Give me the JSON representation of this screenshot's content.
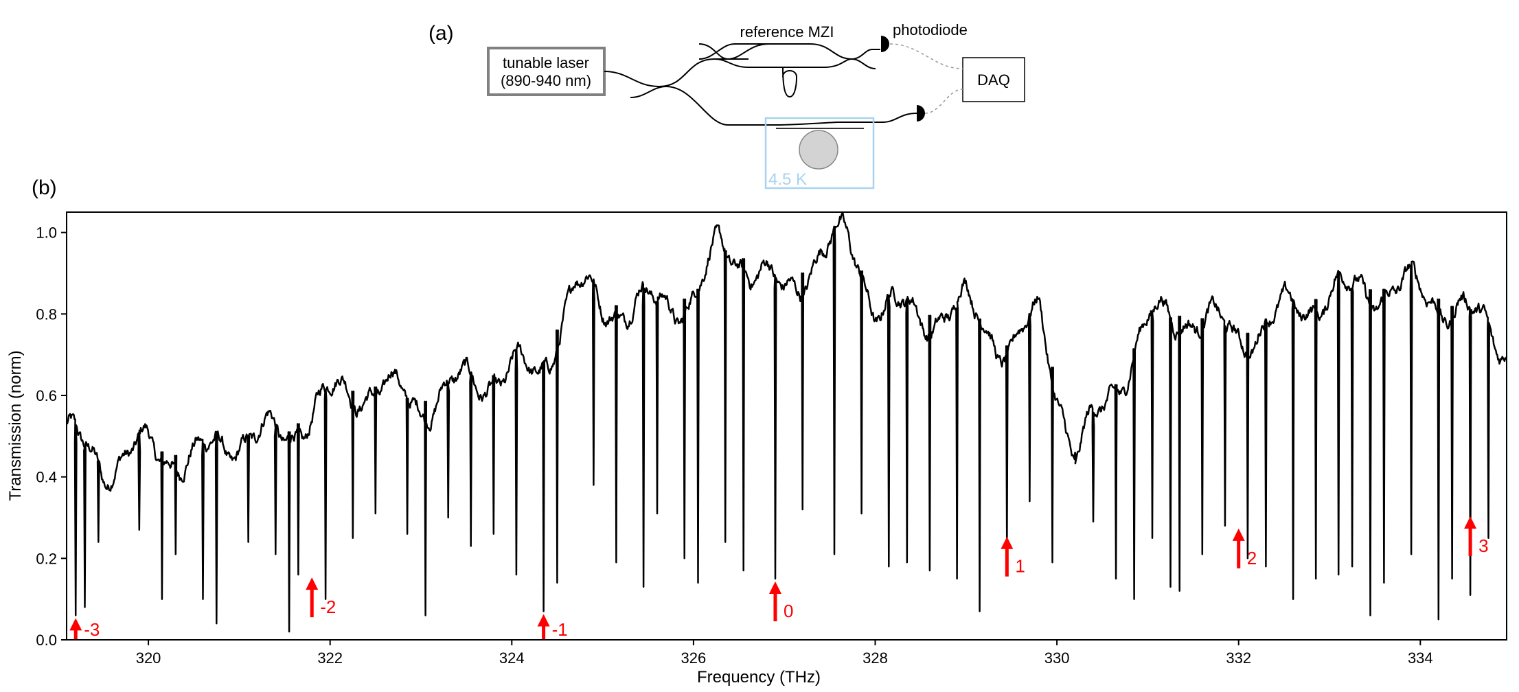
{
  "panel_a": {
    "label": "(a)",
    "laser_label_line1": "tunable laser",
    "laser_label_line2": "(890-940 nm)",
    "mzi_label": "reference MZI",
    "photodiode_label": "photodiode",
    "daq_label": "DAQ",
    "cryostat_label": "4.5 K",
    "colors": {
      "laser_box": "#808080",
      "cryostat_box": "#a8d3f0",
      "cryostat_text": "#a8d3f0",
      "resonator_fill": "#d3d3d3",
      "fiber": "#000000",
      "electrical": "#999999"
    }
  },
  "panel_b": {
    "label": "(b)"
  },
  "chart_data": {
    "type": "line",
    "title": "",
    "xlabel": "Frequency (THz)",
    "ylabel": "Transmission (norm)",
    "xlim": [
      319.1,
      334.95
    ],
    "ylim": [
      0.0,
      1.05
    ],
    "x_ticks": [
      320,
      322,
      324,
      326,
      328,
      330,
      332,
      334
    ],
    "x_tick_labels": [
      "320",
      "322",
      "324",
      "326",
      "328",
      "330",
      "332",
      "334"
    ],
    "y_ticks": [
      0.0,
      0.2,
      0.4,
      0.6,
      0.8,
      1.0
    ],
    "y_tick_labels": [
      "0.0",
      "0.2",
      "0.4",
      "0.6",
      "0.8",
      "1.0"
    ],
    "line_color": "#000000",
    "baseline": {
      "x": [
        319.1,
        319.5,
        320.0,
        320.5,
        321.0,
        321.5,
        322.0,
        322.5,
        323.0,
        323.5,
        324.0,
        324.3,
        324.5,
        324.7,
        325.0,
        325.5,
        326.0,
        326.3,
        326.6,
        327.0,
        327.4,
        327.7,
        328.0,
        328.5,
        329.0,
        329.5,
        329.8,
        330.2,
        330.5,
        331.0,
        331.5,
        332.0,
        332.5,
        333.0,
        333.5,
        334.0,
        334.5,
        334.95
      ],
      "y": [
        0.5,
        0.43,
        0.47,
        0.44,
        0.5,
        0.5,
        0.6,
        0.62,
        0.58,
        0.63,
        0.66,
        0.65,
        0.76,
        0.87,
        0.82,
        0.82,
        0.84,
        0.96,
        0.93,
        0.84,
        0.96,
        0.98,
        0.83,
        0.79,
        0.82,
        0.71,
        0.8,
        0.45,
        0.56,
        0.78,
        0.8,
        0.74,
        0.8,
        0.85,
        0.86,
        0.86,
        0.8,
        0.73
      ]
    },
    "dips": {
      "x": [
        319.2,
        319.3,
        319.45,
        319.9,
        320.15,
        320.3,
        320.6,
        320.75,
        321.1,
        321.4,
        321.55,
        321.65,
        321.95,
        322.25,
        322.5,
        322.85,
        323.05,
        323.3,
        323.55,
        323.8,
        324.05,
        324.35,
        324.5,
        324.9,
        325.15,
        325.45,
        325.6,
        325.9,
        326.05,
        326.35,
        326.55,
        326.9,
        327.2,
        327.55,
        327.85,
        328.15,
        328.35,
        328.6,
        328.9,
        329.15,
        329.45,
        329.7,
        329.95,
        330.2,
        330.4,
        330.65,
        330.85,
        331.05,
        331.25,
        331.35,
        331.6,
        331.85,
        332.1,
        332.3,
        332.6,
        332.85,
        333.1,
        333.25,
        333.45,
        333.6,
        333.9,
        334.2,
        334.35,
        334.55,
        334.75
      ],
      "y": [
        0.06,
        0.08,
        0.24,
        0.27,
        0.1,
        0.21,
        0.1,
        0.04,
        0.24,
        0.21,
        0.02,
        0.16,
        0.1,
        0.25,
        0.31,
        0.26,
        0.06,
        0.3,
        0.23,
        0.26,
        0.16,
        0.07,
        0.14,
        0.38,
        0.19,
        0.13,
        0.31,
        0.2,
        0.14,
        0.24,
        0.17,
        0.15,
        0.32,
        0.21,
        0.31,
        0.18,
        0.19,
        0.17,
        0.15,
        0.07,
        0.22,
        0.34,
        0.19,
        0.46,
        0.29,
        0.15,
        0.1,
        0.25,
        0.13,
        0.12,
        0.21,
        0.28,
        0.2,
        0.18,
        0.1,
        0.15,
        0.16,
        0.18,
        0.06,
        0.14,
        0.21,
        0.05,
        0.15,
        0.11,
        0.25
      ]
    },
    "annotations": [
      {
        "label": "-3",
        "x": 319.2,
        "y": 0.06,
        "color": "#ff0000"
      },
      {
        "label": "-2",
        "x": 321.8,
        "y": 0.16,
        "color": "#ff0000"
      },
      {
        "label": "-1",
        "x": 324.35,
        "y": 0.07,
        "color": "#ff0000"
      },
      {
        "label": "0",
        "x": 326.9,
        "y": 0.15,
        "color": "#ff0000"
      },
      {
        "label": "1",
        "x": 329.45,
        "y": 0.26,
        "color": "#ff0000"
      },
      {
        "label": "2",
        "x": 332.0,
        "y": 0.28,
        "color": "#ff0000"
      },
      {
        "label": "3",
        "x": 334.55,
        "y": 0.31,
        "color": "#ff0000"
      }
    ]
  }
}
